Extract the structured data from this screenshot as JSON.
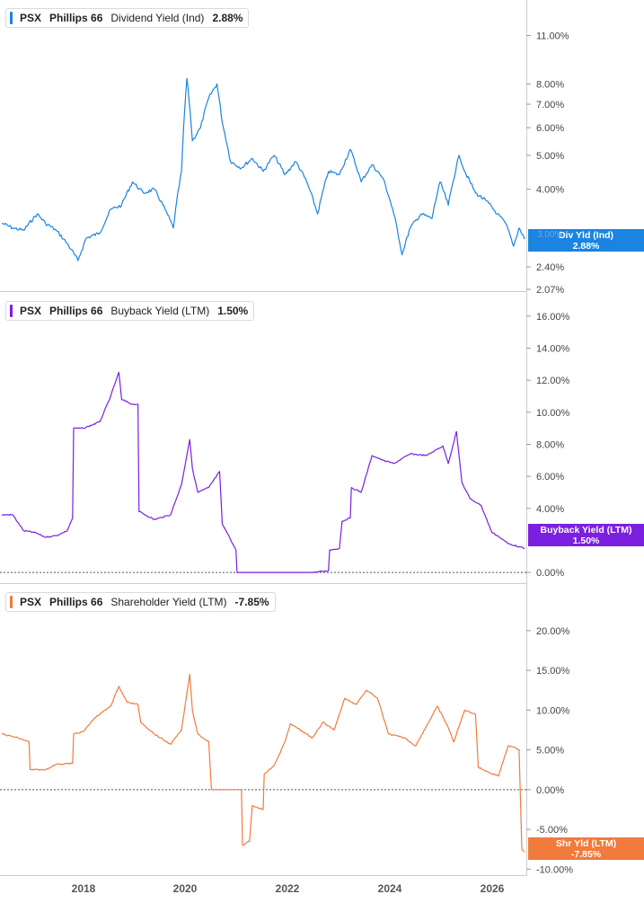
{
  "legend": {
    "dividend": {
      "ticker": "PSX",
      "name": "Phillips 66",
      "series": "Dividend Yield (Ind)",
      "value": "2.88%"
    },
    "buyback": {
      "ticker": "PSX",
      "name": "Phillips 66",
      "series": "Buyback Yield (LTM)",
      "value": "1.50%"
    },
    "shareholder": {
      "ticker": "PSX",
      "name": "Phillips 66",
      "series": "Shareholder Yield (LTM)",
      "value": "-7.85%"
    }
  },
  "badges": {
    "dividend": {
      "label": "Div Yld (Ind)",
      "value": "2.88%",
      "hidden_tick": "3.00%"
    },
    "buyback": {
      "label": "Buyback Yield (LTM)",
      "value": "1.50%"
    },
    "shareholder": {
      "label": "Shr Yld (LTM)",
      "value": "-7.85%"
    }
  },
  "colors": {
    "dividend": "#1a84e0",
    "buyback": "#7b1fe0",
    "shareholder": "#f07b3c",
    "grid": "#cccccc",
    "zero_line": "#555555"
  },
  "x_axis_labels": [
    "2018",
    "2020",
    "2022",
    "2024",
    "2026"
  ],
  "chart_data": [
    {
      "type": "line",
      "title": "PSX Phillips 66 Dividend Yield (Ind)",
      "y_scale": "log",
      "ylim": [
        2.07,
        12.5
      ],
      "y_ticks": [
        "11.00%",
        "8.00%",
        "7.00%",
        "6.00%",
        "5.00%",
        "4.00%",
        "3.00%",
        "2.40%",
        "2.07%"
      ],
      "y_tick_values": [
        11,
        8,
        7,
        6,
        5,
        4,
        3,
        2.4,
        2.07
      ],
      "x_range": [
        2016.8,
        2026.4
      ],
      "x_ticks": [
        2018,
        2020,
        2022,
        2024,
        2026
      ],
      "series": [
        {
          "name": "Dividend Yield (Ind)",
          "x": [
            2016.8,
            2017.0,
            2017.2,
            2017.45,
            2017.6,
            2017.8,
            2018.0,
            2018.2,
            2018.35,
            2018.6,
            2018.8,
            2019.0,
            2019.2,
            2019.4,
            2019.6,
            2019.8,
            2019.95,
            2020.1,
            2020.2,
            2020.3,
            2020.45,
            2020.6,
            2020.75,
            2020.85,
            2021.0,
            2021.2,
            2021.4,
            2021.6,
            2021.8,
            2022.0,
            2022.2,
            2022.4,
            2022.6,
            2022.8,
            2023.0,
            2023.2,
            2023.4,
            2023.6,
            2023.8,
            2024.0,
            2024.15,
            2024.3,
            2024.5,
            2024.7,
            2024.85,
            2025.0,
            2025.2,
            2025.3,
            2025.5,
            2025.7,
            2025.9,
            2026.05,
            2026.2,
            2026.3,
            2026.4
          ],
          "values": [
            3.2,
            3.1,
            3.05,
            3.4,
            3.2,
            3.05,
            2.8,
            2.5,
            2.9,
            3.0,
            3.5,
            3.6,
            4.2,
            3.9,
            4.0,
            3.5,
            3.1,
            4.5,
            8.3,
            5.5,
            6.0,
            7.3,
            8.0,
            6.2,
            4.8,
            4.6,
            4.9,
            4.5,
            5.0,
            4.4,
            4.8,
            4.2,
            3.4,
            4.5,
            4.4,
            5.2,
            4.2,
            4.7,
            4.3,
            3.4,
            2.6,
            3.1,
            3.4,
            3.3,
            4.2,
            3.6,
            5.0,
            4.5,
            3.9,
            3.7,
            3.4,
            3.2,
            2.75,
            3.1,
            2.88
          ]
        }
      ]
    },
    {
      "type": "line",
      "title": "PSX Phillips 66 Buyback Yield (LTM)",
      "ylim": [
        -0.5,
        16.5
      ],
      "y_ticks": [
        "16.00%",
        "14.00%",
        "12.00%",
        "10.00%",
        "8.00%",
        "6.00%",
        "4.00%",
        "0.00%"
      ],
      "y_tick_values": [
        16,
        14,
        12,
        10,
        8,
        6,
        4,
        0
      ],
      "x_range": [
        2016.8,
        2026.4
      ],
      "series": [
        {
          "name": "Buyback Yield (LTM)",
          "x": [
            2016.8,
            2017.0,
            2017.2,
            2017.4,
            2017.6,
            2017.8,
            2018.0,
            2018.1,
            2018.12,
            2018.3,
            2018.6,
            2018.8,
            2018.95,
            2019.0,
            2019.2,
            2019.3,
            2019.32,
            2019.6,
            2019.9,
            2020.1,
            2020.25,
            2020.3,
            2020.4,
            2020.6,
            2020.8,
            2020.85,
            2020.95,
            2021.1,
            2021.12,
            2021.5,
            2022.0,
            2022.5,
            2022.8,
            2022.82,
            2023.0,
            2023.05,
            2023.2,
            2023.22,
            2023.4,
            2023.6,
            2023.8,
            2024.0,
            2024.3,
            2024.6,
            2024.9,
            2025.0,
            2025.15,
            2025.25,
            2025.4,
            2025.6,
            2025.8,
            2025.9,
            2026.1,
            2026.3,
            2026.4
          ],
          "values": [
            3.6,
            3.6,
            2.6,
            2.5,
            2.2,
            2.3,
            2.6,
            3.4,
            9.0,
            9.0,
            9.4,
            11.0,
            12.5,
            10.8,
            10.5,
            10.5,
            3.8,
            3.3,
            3.6,
            5.5,
            8.3,
            6.5,
            5.0,
            5.3,
            6.3,
            3.0,
            2.4,
            1.4,
            0.0,
            0.0,
            0.0,
            0.0,
            0.1,
            1.4,
            1.5,
            3.2,
            3.4,
            5.3,
            5.0,
            7.3,
            7.0,
            6.8,
            7.4,
            7.3,
            7.9,
            6.8,
            8.8,
            5.6,
            4.6,
            4.2,
            2.5,
            2.3,
            1.8,
            1.6,
            1.5
          ]
        }
      ]
    },
    {
      "type": "line",
      "title": "PSX Phillips 66 Shareholder Yield (LTM)",
      "ylim": [
        -10.3,
        24.5
      ],
      "y_ticks": [
        "20.00%",
        "15.00%",
        "10.00%",
        "5.00%",
        "0.00%",
        "-5.00%",
        "-10.00%"
      ],
      "y_tick_values": [
        20,
        15,
        10,
        5,
        0,
        -5,
        -10
      ],
      "x_range": [
        2016.8,
        2026.4
      ],
      "series": [
        {
          "name": "Shareholder Yield (LTM)",
          "x": [
            2016.8,
            2017.1,
            2017.3,
            2017.32,
            2017.6,
            2017.8,
            2017.82,
            2018.1,
            2018.12,
            2018.3,
            2018.5,
            2018.8,
            2018.95,
            2019.1,
            2019.3,
            2019.35,
            2019.6,
            2019.9,
            2020.1,
            2020.25,
            2020.3,
            2020.4,
            2020.6,
            2020.65,
            2020.8,
            2021.0,
            2021.2,
            2021.22,
            2021.35,
            2021.4,
            2021.6,
            2021.62,
            2021.8,
            2022.0,
            2022.1,
            2022.5,
            2022.7,
            2022.9,
            2023.1,
            2023.3,
            2023.5,
            2023.7,
            2023.9,
            2024.2,
            2024.4,
            2024.6,
            2024.8,
            2025.0,
            2025.1,
            2025.3,
            2025.5,
            2025.55,
            2025.8,
            2025.9,
            2025.92,
            2026.1,
            2026.25,
            2026.3,
            2026.35,
            2026.4
          ],
          "values": [
            7.0,
            6.5,
            6.0,
            2.5,
            2.5,
            3.2,
            3.2,
            3.3,
            7.0,
            7.3,
            9.0,
            10.5,
            13.0,
            11.0,
            10.7,
            8.5,
            7.0,
            5.7,
            7.5,
            14.5,
            10.0,
            7.0,
            6.0,
            0.0,
            0.0,
            0.0,
            0.0,
            -7.0,
            -6.5,
            -2.0,
            -2.5,
            2.0,
            3.0,
            6.0,
            8.3,
            6.5,
            8.5,
            7.5,
            11.5,
            10.7,
            12.5,
            11.5,
            7.0,
            6.5,
            5.5,
            8.0,
            10.5,
            7.8,
            6.0,
            10.0,
            9.5,
            2.8,
            2.0,
            1.8,
            1.7,
            5.5,
            5.2,
            5.0,
            -7.5,
            -7.85
          ]
        }
      ]
    }
  ]
}
